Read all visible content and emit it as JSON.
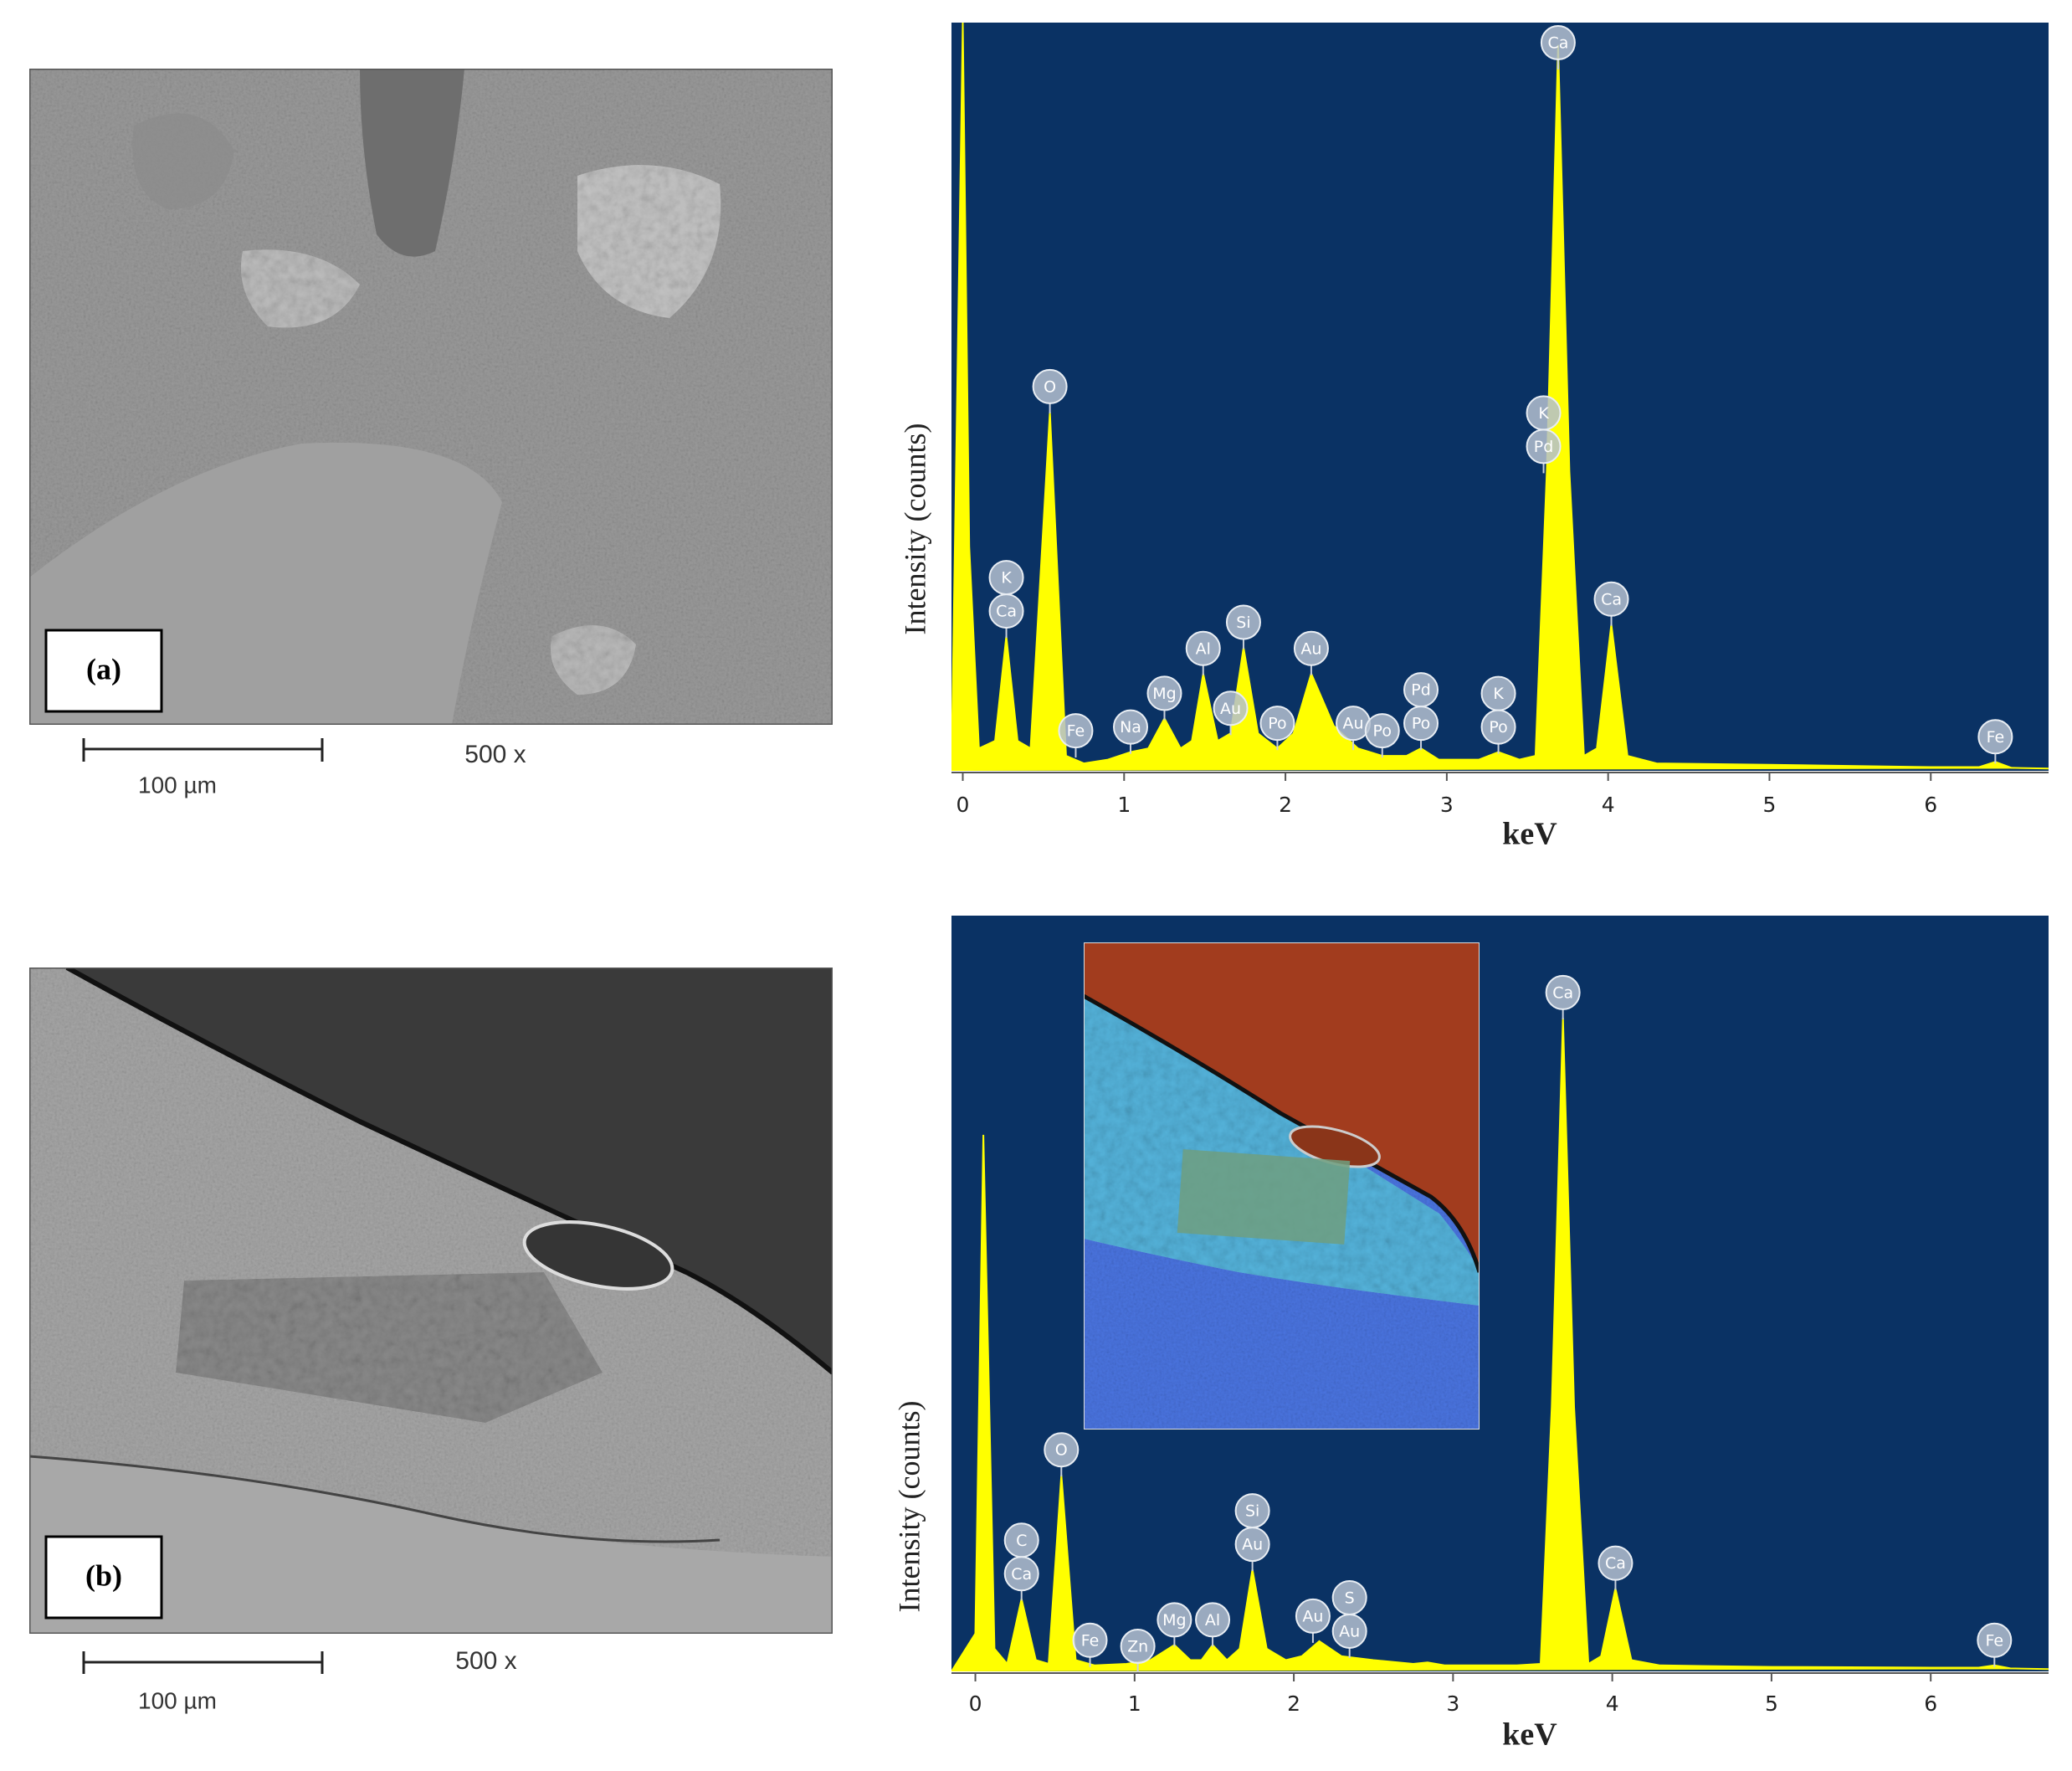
{
  "panels": [
    {
      "label": "(a)",
      "scale_bar": "100 µm",
      "magnification": "500 x"
    },
    {
      "label": "(b)",
      "scale_bar": "100 µm",
      "magnification": "500 x"
    }
  ],
  "chart_data": [
    {
      "type": "area",
      "xlabel": "keV",
      "ylabel": "Intensity (counts)",
      "color": "#ffff00",
      "background": "#0a3264",
      "xlim": [
        -0.07,
        6.73
      ],
      "ylim": [
        0,
        100
      ],
      "xticks": [
        0,
        1,
        2,
        3,
        4,
        5,
        6
      ],
      "x": [
        -0.07,
        0,
        0.04,
        0.1,
        0.2,
        0.27,
        0.34,
        0.42,
        0.54,
        0.64,
        0.75,
        0.9,
        1.04,
        1.15,
        1.25,
        1.35,
        1.42,
        1.49,
        1.58,
        1.66,
        1.74,
        1.83,
        1.95,
        2.05,
        2.16,
        2.3,
        2.45,
        2.6,
        2.75,
        2.84,
        2.95,
        3.2,
        3.32,
        3.45,
        3.55,
        3.62,
        3.69,
        3.76,
        3.85,
        3.93,
        4.02,
        4.12,
        4.3,
        5,
        6,
        6.3,
        6.4,
        6.5,
        6.73
      ],
      "values": [
        0,
        100,
        30,
        3,
        4,
        18,
        4,
        3,
        48,
        2,
        1,
        1.5,
        2.5,
        3,
        7,
        3,
        4,
        13,
        4,
        5,
        16.5,
        5,
        3,
        5,
        13,
        6,
        3,
        2,
        2,
        3,
        1.5,
        1.5,
        2.5,
        1.5,
        2,
        40,
        97,
        40,
        2,
        3,
        19.6,
        2,
        1,
        0.8,
        0.5,
        0.5,
        1.2,
        0.4,
        0.3
      ],
      "annotations": [
        {
          "x": 0.27,
          "labels": [
            "K",
            "Ca"
          ]
        },
        {
          "x": 0.54,
          "labels": [
            "O"
          ]
        },
        {
          "x": 0.7,
          "labels": [
            "Fe"
          ]
        },
        {
          "x": 1.04,
          "labels": [
            "Na"
          ]
        },
        {
          "x": 1.25,
          "labels": [
            "Mg"
          ]
        },
        {
          "x": 1.49,
          "labels": [
            "Al"
          ]
        },
        {
          "x": 1.66,
          "labels": [
            "Au"
          ]
        },
        {
          "x": 1.74,
          "labels": [
            "Si"
          ]
        },
        {
          "x": 1.95,
          "labels": [
            "Po"
          ]
        },
        {
          "x": 2.16,
          "labels": [
            "Au"
          ]
        },
        {
          "x": 2.42,
          "labels": [
            "Au"
          ]
        },
        {
          "x": 2.6,
          "labels": [
            "Po"
          ]
        },
        {
          "x": 2.84,
          "labels": [
            "Pd",
            "Po"
          ]
        },
        {
          "x": 3.32,
          "labels": [
            "K",
            "Po"
          ]
        },
        {
          "x": 3.6,
          "labels": [
            "K",
            "Pd"
          ]
        },
        {
          "x": 3.69,
          "labels": [
            "Ca"
          ]
        },
        {
          "x": 4.02,
          "labels": [
            "Ca"
          ]
        },
        {
          "x": 6.4,
          "labels": [
            "Fe"
          ]
        }
      ]
    },
    {
      "type": "area",
      "xlabel": "keV",
      "ylabel": "Intensity (counts)",
      "color": "#ffff00",
      "background": "#0a3264",
      "xlim": [
        -0.15,
        6.74
      ],
      "ylim": [
        0,
        100
      ],
      "xticks": [
        0,
        1,
        2,
        3,
        4,
        5,
        6
      ],
      "x": [
        -0.15,
        0,
        0.05,
        0.12,
        0.2,
        0.29,
        0.38,
        0.46,
        0.54,
        0.63,
        0.75,
        0.95,
        1.1,
        1.25,
        1.35,
        1.42,
        1.49,
        1.58,
        1.66,
        1.74,
        1.83,
        1.95,
        2.05,
        2.16,
        2.3,
        2.5,
        2.75,
        2.84,
        2.95,
        3.4,
        3.55,
        3.62,
        3.69,
        3.76,
        3.85,
        3.93,
        4.02,
        4.12,
        4.3,
        5,
        6,
        6.3,
        6.4,
        6.5,
        6.74
      ],
      "values": [
        0,
        5,
        71,
        3,
        1,
        9.6,
        1.5,
        1,
        26,
        1.5,
        0.8,
        1,
        1.5,
        3.5,
        1.5,
        1.5,
        3.5,
        1.5,
        3,
        13.5,
        3,
        1.5,
        2,
        4,
        2,
        1.5,
        1,
        1.2,
        0.8,
        0.8,
        1,
        35,
        86.5,
        35,
        1,
        2,
        11,
        1.5,
        0.8,
        0.6,
        0.5,
        0.5,
        0.8,
        0.4,
        0.3
      ],
      "annotations": [
        {
          "x": 0.29,
          "labels": [
            "C",
            "Ca"
          ]
        },
        {
          "x": 0.54,
          "labels": [
            "O"
          ]
        },
        {
          "x": 0.72,
          "labels": [
            "Fe"
          ]
        },
        {
          "x": 1.02,
          "labels": [
            "Zn"
          ]
        },
        {
          "x": 1.25,
          "labels": [
            "Mg"
          ]
        },
        {
          "x": 1.49,
          "labels": [
            "Al"
          ]
        },
        {
          "x": 1.74,
          "labels": [
            "Si",
            "Au"
          ]
        },
        {
          "x": 2.12,
          "labels": [
            "Au"
          ]
        },
        {
          "x": 2.35,
          "labels": [
            "S",
            "Au"
          ]
        },
        {
          "x": 3.69,
          "labels": [
            "Ca"
          ]
        },
        {
          "x": 4.02,
          "labels": [
            "Ca"
          ]
        },
        {
          "x": 6.4,
          "labels": [
            "Fe"
          ]
        }
      ]
    }
  ]
}
